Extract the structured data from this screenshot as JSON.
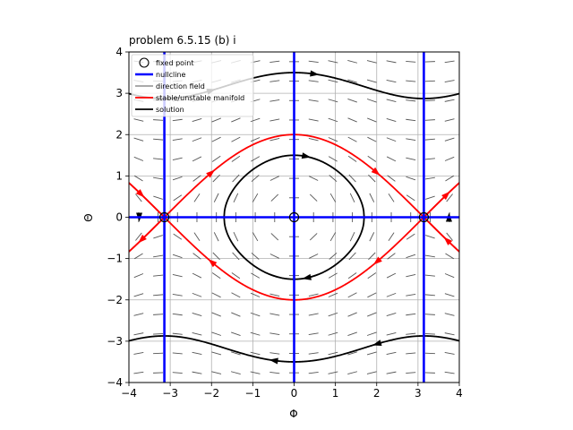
{
  "chart_data": {
    "type": "phase_portrait",
    "title": "problem 6.5.15 (b) i",
    "xlabel": "Φ",
    "ylabel": "Θ",
    "xlim": [
      -4,
      4
    ],
    "ylim": [
      -4,
      4
    ],
    "xticks": [
      "−4",
      "−3",
      "−2",
      "−1",
      "0",
      "1",
      "2",
      "3",
      "4"
    ],
    "yticks": [
      "−4",
      "−3",
      "−2",
      "−1",
      "0",
      "1",
      "2",
      "3",
      "4"
    ],
    "xtick_values": [
      -4,
      -3,
      -2,
      -1,
      0,
      1,
      2,
      3,
      4
    ],
    "ytick_values": [
      -4,
      -3,
      -2,
      -1,
      0,
      1,
      2,
      3,
      4
    ],
    "grid": true,
    "legend_position": "top-left",
    "legend": [
      {
        "label": "fixed point",
        "kind": "circle",
        "color": "#000000"
      },
      {
        "label": "nullcline",
        "kind": "line",
        "color": "#0000ff"
      },
      {
        "label": "direction field",
        "kind": "line",
        "color": "#555555"
      },
      {
        "label": "stable/unstable manifold",
        "kind": "line",
        "color": "#ff0000"
      },
      {
        "label": "solution",
        "kind": "line",
        "color": "#000000"
      }
    ],
    "fixed_points": [
      {
        "x": -3.14159,
        "y": 0,
        "type": "saddle"
      },
      {
        "x": 0,
        "y": 0,
        "type": "center"
      },
      {
        "x": 3.14159,
        "y": 0,
        "type": "saddle"
      }
    ],
    "nullclines": [
      {
        "kind": "vertical",
        "x": -3.14159
      },
      {
        "kind": "vertical",
        "x": 0
      },
      {
        "kind": "vertical",
        "x": 3.14159
      },
      {
        "kind": "horizontal",
        "y": 0
      }
    ],
    "system": {
      "dx": "y",
      "dy": "-sin(x)"
    },
    "energy_curves": [
      {
        "name": "manifold",
        "color": "#ff0000",
        "energy": 2,
        "arrows": [
          -2.0,
          2.0
        ]
      },
      {
        "name": "closed orbit",
        "color": "#000000",
        "energy": 1.125,
        "arrows": [
          0.3
        ]
      },
      {
        "name": "rotation",
        "color": "#000000",
        "energy": 6.125,
        "arrows": [
          -2.0,
          0.5
        ]
      }
    ],
    "colors": {
      "nullcline": "#0000ff",
      "manifold": "#ff0000",
      "solution": "#000000",
      "field": "#555555",
      "grid": "#b0b0b0"
    }
  }
}
